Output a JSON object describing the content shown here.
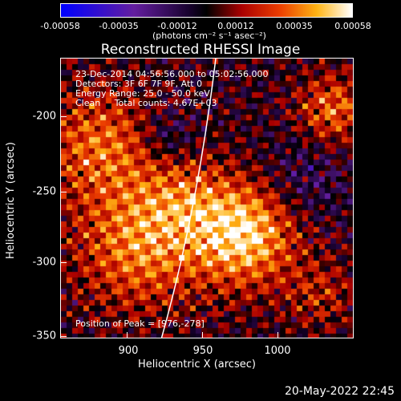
{
  "colorbar": {
    "ticks": [
      "-0.00058",
      "-0.00035",
      "-0.00012",
      "0.00012",
      "0.00035",
      "0.00058"
    ],
    "units": "(photons cm⁻² s⁻¹ asec⁻²)"
  },
  "title": "Reconstructed RHESSI Image",
  "info": {
    "time_range": "23-Dec-2014 04:56:56.000 to 05:02:56.000",
    "detectors": "Detectors: 3F 6F 7F 9F, Att 0",
    "energy": "Energy Range: 25.0 - 50.0 keV",
    "clean": "Clean     Total counts: 4.67E+03",
    "peak": "Position of Peak = [976,-278]"
  },
  "axes": {
    "xlabel": "Heliocentric X (arcsec)",
    "ylabel": "Heliocentric Y (arcsec)",
    "x_ticks": [
      "900",
      "950",
      "1000"
    ],
    "y_ticks": [
      "-200",
      "-250",
      "-300",
      "-350"
    ]
  },
  "footer_date": "20-May-2022 22:45",
  "colors": {
    "background": "#000000",
    "text": "#ffffff",
    "limb": "#ffffff"
  }
}
